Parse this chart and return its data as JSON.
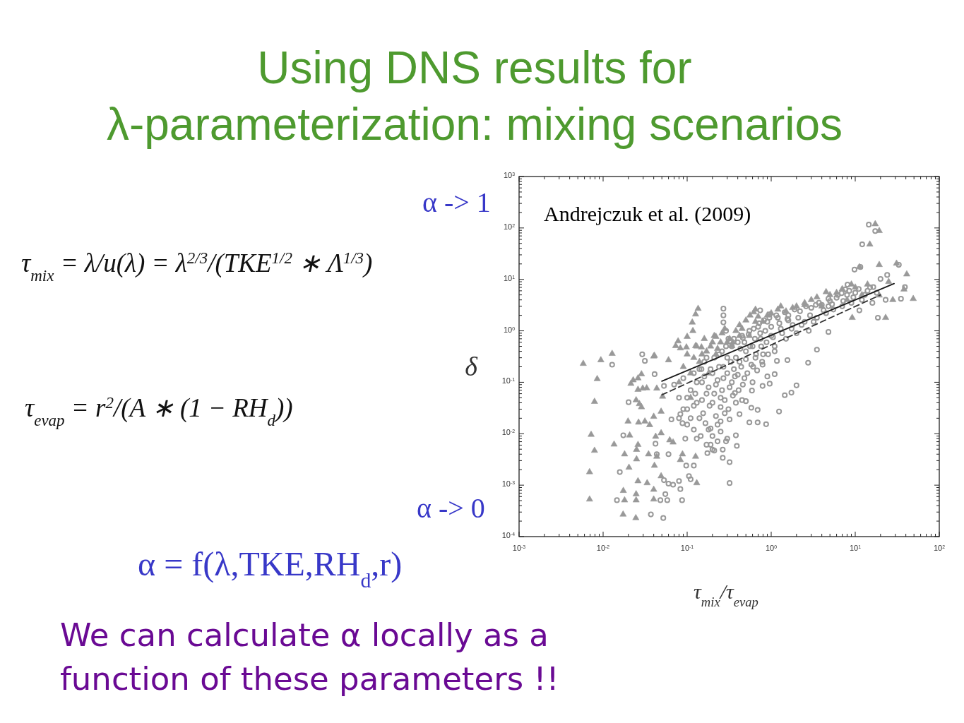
{
  "chart_data": {
    "type": "scatter",
    "title": "Using DNS results for λ-parameterization: mixing scenarios",
    "xlabel": "τ$_{mix}$/τ$_{evap}$",
    "ylabel": "δ",
    "log": "xy",
    "annotations": [
      "τ$_{mix}$ = λ/u(λ) = λ$^{2/3}$/(TKE$^{1/2}$ ∗ Λ$^{1/3}$)",
      "τ$_{evap}$ = r$^{2}$/(A ∗ (1 − RH$_{d}$))",
      "α -> 1",
      "α -> 0",
      "α = f(λ,TKE,RH$_{d}$,r)",
      "We can calculate α locally as a function of these parameters !!",
      "Andrejczuk et al. (2009)"
    ],
    "xlim": [
      0.001,
      100
    ],
    "ylim": [
      0.0001,
      1000
    ],
    "xticks": [
      {
        "value": 0.001,
        "label": "10$^{-3}$"
      },
      {
        "value": 0.002,
        "label": null
      },
      {
        "value": 0.003,
        "label": null
      },
      {
        "value": 0.004,
        "label": null
      },
      {
        "value": 0.005,
        "label": null
      },
      {
        "value": 0.006,
        "label": null
      },
      {
        "value": 0.007,
        "label": null
      },
      {
        "value": 0.008,
        "label": null
      },
      {
        "value": 0.009,
        "label": null
      },
      {
        "value": 0.01,
        "label": "10$^{-2}$"
      },
      {
        "value": 0.02,
        "label": null
      },
      {
        "value": 0.03,
        "label": null
      },
      {
        "value": 0.04,
        "label": null
      },
      {
        "value": 0.05,
        "label": null
      },
      {
        "value": 0.06,
        "label": null
      },
      {
        "value": 0.07,
        "label": null
      },
      {
        "value": 0.08,
        "label": null
      },
      {
        "value": 0.09,
        "label": null
      },
      {
        "value": 0.1,
        "label": "10$^{-1}$"
      },
      {
        "value": 0.2,
        "label": null
      },
      {
        "value": 0.3,
        "label": null
      },
      {
        "value": 0.4,
        "label": null
      },
      {
        "value": 0.5,
        "label": null
      },
      {
        "value": 0.6,
        "label": null
      },
      {
        "value": 0.7,
        "label": null
      },
      {
        "value": 0.8,
        "label": null
      },
      {
        "value": 0.9,
        "label": null
      },
      {
        "value": 1,
        "label": "10$^{0}$"
      },
      {
        "value": 2,
        "label": null
      },
      {
        "value": 3,
        "label": null
      },
      {
        "value": 4,
        "label": null
      },
      {
        "value": 5,
        "label": null
      },
      {
        "value": 6,
        "label": null
      },
      {
        "value": 7,
        "label": null
      },
      {
        "value": 8,
        "label": null
      },
      {
        "value": 9,
        "label": null
      },
      {
        "value": 10,
        "label": "10$^{1}$"
      },
      {
        "value": 20,
        "label": null
      },
      {
        "value": 30,
        "label": null
      },
      {
        "value": 40,
        "label": null
      },
      {
        "value": 50,
        "label": null
      },
      {
        "value": 60,
        "label": null
      },
      {
        "value": 70,
        "label": null
      },
      {
        "value": 80,
        "label": null
      },
      {
        "value": 90,
        "label": null
      },
      {
        "value": 100,
        "label": "10$^{2}$"
      }
    ],
    "yticks": [
      {
        "value": 0.0001,
        "label": "10$^{-4}$"
      },
      {
        "value": 0.0002,
        "label": null
      },
      {
        "value": 0.0003,
        "label": null
      },
      {
        "value": 0.0004,
        "label": null
      },
      {
        "value": 0.0005,
        "label": null
      },
      {
        "value": 0.0006,
        "label": null
      },
      {
        "value": 0.0007,
        "label": null
      },
      {
        "value": 0.0008,
        "label": null
      },
      {
        "value": 0.0009,
        "label": null
      },
      {
        "value": 0.001,
        "label": "10$^{-3}$"
      },
      {
        "value": 0.002,
        "label": null
      },
      {
        "value": 0.003,
        "label": null
      },
      {
        "value": 0.004,
        "label": null
      },
      {
        "value": 0.005,
        "label": null
      },
      {
        "value": 0.006,
        "label": null
      },
      {
        "value": 0.007,
        "label": null
      },
      {
        "value": 0.008,
        "label": null
      },
      {
        "value": 0.009,
        "label": null
      },
      {
        "value": 0.01,
        "label": "10$^{-2}$"
      },
      {
        "value": 0.02,
        "label": null
      },
      {
        "value": 0.03,
        "label": null
      },
      {
        "value": 0.04,
        "label": null
      },
      {
        "value": 0.05,
        "label": null
      },
      {
        "value": 0.06,
        "label": null
      },
      {
        "value": 0.07,
        "label": null
      },
      {
        "value": 0.08,
        "label": null
      },
      {
        "value": 0.09,
        "label": null
      },
      {
        "value": 0.1,
        "label": "10$^{-1}$"
      },
      {
        "value": 0.2,
        "label": null
      },
      {
        "value": 0.3,
        "label": null
      },
      {
        "value": 0.4,
        "label": null
      },
      {
        "value": 0.5,
        "label": null
      },
      {
        "value": 0.6,
        "label": null
      },
      {
        "value": 0.7,
        "label": null
      },
      {
        "value": 0.8,
        "label": null
      },
      {
        "value": 0.9,
        "label": null
      },
      {
        "value": 1,
        "label": "10$^{0}$"
      },
      {
        "value": 2,
        "label": null
      },
      {
        "value": 3,
        "label": null
      },
      {
        "value": 4,
        "label": null
      },
      {
        "value": 5,
        "label": null
      },
      {
        "value": 6,
        "label": null
      },
      {
        "value": 7,
        "label": null
      },
      {
        "value": 8,
        "label": null
      },
      {
        "value": 9,
        "label": null
      },
      {
        "value": 10,
        "label": "10$^{1}$"
      },
      {
        "value": 20,
        "label": null
      },
      {
        "value": 30,
        "label": null
      },
      {
        "value": 40,
        "label": null
      },
      {
        "value": 50,
        "label": null
      },
      {
        "value": 60,
        "label": null
      },
      {
        "value": 70,
        "label": null
      },
      {
        "value": 80,
        "label": null
      },
      {
        "value": 90,
        "label": null
      },
      {
        "value": 100,
        "label": "10$^{2}$"
      },
      {
        "value": 200,
        "label": null
      },
      {
        "value": 300,
        "label": null
      },
      {
        "value": 400,
        "label": null
      },
      {
        "value": 500,
        "label": null
      },
      {
        "value": 600,
        "label": null
      },
      {
        "value": 700,
        "label": null
      },
      {
        "value": 800,
        "label": null
      },
      {
        "value": 900,
        "label": null
      },
      {
        "value": 1000,
        "label": "10$^{3}$"
      }
    ],
    "series": [
      {
        "type": "scatter",
        "marker": "triangle",
        "color": "#999999",
        "x": [
          0.0058,
          0.0094,
          0.0128,
          0.0085,
          0.0079,
          0.0072,
          0.0079,
          0.0069,
          0.0069,
          0.0135,
          0.0173,
          0.0245,
          0.0174,
          0.018,
          0.0247,
          0.0247,
          0.018,
          0.0203,
          0.0198,
          0.0207,
          0.0214,
          0.0228,
          0.026,
          0.026,
          0.0296,
          0.033,
          0.0286,
          0.0247,
          0.027,
          0.0286,
          0.0264,
          0.0314,
          0.0358,
          0.026,
          0.025,
          0.025,
          0.0347,
          0.026,
          0.0334,
          0.04,
          0.04,
          0.0408,
          0.0435,
          0.0422,
          0.04,
          0.0435,
          0.051,
          0.06,
          0.049,
          0.049,
          0.0408,
          0.049,
          0.062,
          0.083,
          0.088,
          0.126,
          0.13,
          0.068,
          0.135,
          0.126,
          0.115,
          0.117,
          0.078,
          0.073,
          0.083,
          0.1,
          0.098,
          0.126,
          0.148,
          0.04,
          17.3,
          19.3,
          14.9,
          19.3,
          31,
          41,
          49,
          38,
          23,
          28,
          11.2,
          19.3,
          9.2,
          4.5,
          2.5,
          0.65,
          0.22,
          0.34,
          0.3,
          0.42,
          0.55,
          0.65,
          0.35,
          0.25,
          0.2,
          0.15,
          0.45,
          0.7,
          0.9,
          1.2,
          1.5,
          2,
          3,
          4,
          6,
          8,
          10,
          12,
          0.12,
          0.11,
          0.18,
          0.22,
          0.08,
          0.09,
          0.1,
          0.11,
          0.13,
          0.14,
          0.16,
          0.17,
          0.19,
          0.21,
          0.23,
          0.26,
          0.28,
          0.32,
          0.38,
          0.42,
          0.5,
          0.56,
          0.62,
          0.8,
          1,
          1.3,
          1.8,
          2.5,
          3.5,
          5,
          7,
          9,
          14,
          25
        ],
        "values": [
          0.23,
          0.27,
          0.36,
          0.116,
          0.042,
          0.0096,
          0.0047,
          0.0018,
          0.00053,
          0.0062,
          0.00027,
          0.00023,
          0.00078,
          0.00051,
          0.00067,
          0.00051,
          0.004,
          0.0022,
          0.0174,
          0.0093,
          0.094,
          0.11,
          0.12,
          0.072,
          0.076,
          0.077,
          0.144,
          0.045,
          0.038,
          0.033,
          0.0166,
          0.0174,
          0.0148,
          0.0061,
          0.0049,
          0.0032,
          0.004,
          0.0012,
          0.0011,
          0.00082,
          0.00053,
          0.0024,
          0.0036,
          0.0088,
          0.0215,
          0.076,
          0.053,
          0.27,
          0.0015,
          0.0103,
          0.33,
          0.027,
          0.0075,
          0.0031,
          0.004,
          0.0036,
          0.0011,
          0.0068,
          2.7,
          2.1,
          1.46,
          1,
          0.63,
          0.51,
          0.46,
          0.77,
          0.48,
          0.51,
          0.48,
          0.32,
          119,
          88,
          48,
          19.2,
          20.4,
          12.6,
          4.2,
          6.4,
          1.8,
          4,
          17.4,
          4.9,
          1.8,
          5.7,
          3.2,
          2.6,
          0.77,
          0.51,
          0.6,
          0.8,
          0.8,
          1.5,
          0.6,
          0.6,
          0.6,
          0.35,
          1.1,
          1.9,
          2,
          2.6,
          2.4,
          3,
          4,
          3,
          5.5,
          4,
          7,
          5,
          0.3,
          0.05,
          0.15,
          0.35,
          0.1,
          0.2,
          0.35,
          0.15,
          0.5,
          0.25,
          0.7,
          0.4,
          0.5,
          0.8,
          0.45,
          0.9,
          1.1,
          0.7,
          1,
          1.3,
          1.6,
          2,
          2.3,
          1.5,
          2.2,
          3,
          2.8,
          3.5,
          4.5,
          5,
          6.5,
          8,
          8,
          9
        ]
      },
      {
        "type": "scatter",
        "marker": "circle",
        "color": "#999999",
        "x": [
          0.0128,
          0.0292,
          0.0314,
          0.0201,
          0.0174,
          0.0158,
          0.0146,
          0.037,
          0.052,
          0.048,
          0.055,
          0.058,
          0.087,
          0.083,
          0.08,
          0.053,
          0.06,
          0.068,
          0.0435,
          0.042,
          0.06,
          0.0975,
          0.105,
          0.11,
          0.12,
          0.053,
          0.041,
          0.148,
          0.17,
          0.2,
          0.088,
          0.065,
          0.083,
          2.75,
          2,
          1.74,
          1.45,
          1.24,
          0.87,
          0.69,
          0.55,
          0.69,
          0.58,
          0.5,
          0.39,
          0.38,
          0.32,
          0.265,
          0.32,
          0.265,
          0.21,
          0.174,
          0.29,
          0.23,
          0.19,
          0.19,
          1.56,
          1.17,
          1.1,
          0.96,
          0.79,
          0.59,
          0.45,
          0.37,
          0.42,
          0.32,
          0.25,
          0.25,
          0.37,
          0.61,
          0.79,
          0.9,
          14.5,
          17.3,
          12.1,
          9.8,
          11.5,
          20,
          24,
          33,
          39,
          35,
          23,
          16.4,
          18.6,
          6.9,
          4.8,
          3.5,
          8.1,
          0.27,
          0.27,
          0.27,
          0.29,
          0.31,
          0.46,
          0.96,
          0.74,
          3.4,
          1.56,
          4.8,
          7.6,
          11.2,
          0.07,
          0.08,
          0.09,
          0.1,
          0.11,
          0.12,
          0.13,
          0.14,
          0.15,
          0.16,
          0.17,
          0.18,
          0.19,
          0.2,
          0.21,
          0.22,
          0.23,
          0.24,
          0.25,
          0.26,
          0.27,
          0.28,
          0.3,
          0.32,
          0.34,
          0.36,
          0.38,
          0.4,
          0.42,
          0.45,
          0.48,
          0.5,
          0.55,
          0.6,
          0.65,
          0.7,
          0.75,
          0.8,
          0.9,
          1,
          1.1,
          1.2,
          1.3,
          1.5,
          1.6,
          1.8,
          2,
          2.2,
          2.5,
          2.8,
          3,
          3.5,
          4,
          4.5,
          5,
          5.5,
          6,
          7,
          8,
          9,
          10,
          12,
          14,
          16,
          0.13,
          0.1,
          0.08,
          0.095,
          0.11,
          0.12,
          0.125,
          0.13,
          0.14,
          0.15,
          0.155,
          0.16,
          0.17,
          0.18,
          0.185,
          0.2,
          0.21,
          0.22,
          0.23,
          0.24,
          0.26,
          0.27,
          0.28,
          0.29,
          0.3,
          0.31,
          0.33,
          0.34,
          0.35,
          0.36,
          0.38,
          0.4,
          0.41,
          0.43,
          0.44,
          0.46,
          0.48,
          0.5,
          0.52,
          0.54,
          0.56,
          0.58,
          0.6,
          0.62,
          0.64,
          0.66,
          0.68,
          0.72,
          0.74,
          0.76,
          0.78,
          0.82,
          0.85,
          0.88,
          0.92,
          0.95,
          1,
          1.05,
          1.1,
          1.15,
          1.25,
          1.35,
          1.45,
          1.6,
          1.75,
          1.9,
          2.1,
          2.3,
          2.6,
          2.9,
          3.2,
          3.7,
          4.2,
          4.8,
          5.3,
          6.2,
          7.2,
          8.5,
          9.5,
          11,
          13,
          15,
          18,
          0.09,
          0.1,
          0.12,
          0.145,
          0.165,
          0.2,
          0.25,
          0.3
        ],
        "values": [
          0.22,
          0.35,
          0.26,
          0.041,
          0.0093,
          0.0018,
          0.00051,
          0.00027,
          0.00023,
          0.00051,
          0.00067,
          0.00051,
          0.00051,
          0.00084,
          0.0012,
          0.00125,
          0.00107,
          0.00102,
          0.004,
          0.0064,
          0.004,
          0.0024,
          0.0015,
          0.0013,
          0.0024,
          0.085,
          0.144,
          0.18,
          0.0061,
          0.0049,
          0.016,
          0.019,
          0.024,
          0.24,
          0.087,
          0.063,
          0.056,
          0.027,
          0.0153,
          0.0166,
          0.0166,
          0.029,
          0.032,
          0.043,
          0.0058,
          0.0093,
          0.0028,
          0.0034,
          0.0011,
          0.0049,
          0.0047,
          0.0042,
          0.0071,
          0.0071,
          0.0061,
          0.0127,
          0.27,
          0.26,
          0.144,
          0.094,
          0.085,
          0.069,
          0.045,
          0.062,
          0.024,
          0.019,
          0.0174,
          0.033,
          0.13,
          0.2,
          0.22,
          0.13,
          116,
          87,
          48,
          15.5,
          17.4,
          10.2,
          12.2,
          19.2,
          7.1,
          4.2,
          4,
          7.1,
          1.8,
          5.4,
          0.95,
          0.43,
          7.9,
          2.7,
          2,
          1.46,
          1,
          0.7,
          0.73,
          2.1,
          2.5,
          3.2,
          1.7,
          3,
          6.4,
          2.5,
          0.09,
          0.05,
          0.12,
          0.03,
          0.07,
          0.15,
          0.04,
          0.02,
          0.1,
          0.25,
          0.06,
          0.012,
          0.18,
          0.04,
          0.3,
          0.09,
          0.015,
          0.2,
          0.05,
          0.4,
          0.12,
          0.025,
          0.3,
          0.08,
          0.5,
          0.18,
          0.04,
          0.6,
          0.25,
          0.8,
          0.12,
          0.4,
          1,
          0.5,
          0.3,
          1.2,
          0.7,
          0.35,
          1.5,
          0.8,
          0.5,
          1.8,
          1.1,
          0.7,
          2,
          1.3,
          0.9,
          2.4,
          1.5,
          1,
          2.8,
          1.8,
          3.2,
          2.2,
          3.8,
          2.6,
          4.4,
          3,
          5,
          3.5,
          5.5,
          4,
          6,
          3.5,
          0.008,
          0.015,
          0.02,
          0.008,
          0.02,
          0.035,
          0.06,
          0.1,
          0.18,
          0.045,
          0.025,
          0.13,
          0.3,
          0.08,
          0.035,
          0.15,
          0.06,
          0.022,
          0.11,
          0.35,
          0.07,
          0.2,
          0.045,
          0.5,
          0.15,
          0.03,
          0.25,
          0.1,
          0.055,
          0.7,
          0.3,
          0.14,
          0.07,
          0.45,
          0.2,
          0.09,
          0.6,
          0.28,
          0.15,
          0.85,
          0.5,
          0.22,
          0.1,
          1.1,
          0.7,
          0.35,
          0.17,
          1.4,
          0.9,
          0.5,
          0.25,
          1.6,
          1,
          0.6,
          0.35,
          1.8,
          1.2,
          0.75,
          0.4,
          2,
          1.4,
          0.9,
          2.3,
          1.6,
          1.1,
          2.6,
          1.8,
          1.3,
          3,
          2,
          1.5,
          3.5,
          2.5,
          4.2,
          3.3,
          5,
          3.8,
          6,
          4.5,
          6.5,
          5,
          7,
          5.5,
          0.03,
          0.05,
          0.012,
          0.009,
          0.016,
          0.009,
          0.011,
          0.008
        ]
      },
      {
        "type": "line",
        "marker": "none",
        "line_style": "solid",
        "color": "#1a1a1a",
        "x": [
          0.05,
          29
        ],
        "values": [
          0.105,
          8.3
        ]
      },
      {
        "type": "line",
        "marker": "none",
        "line_style": "dashed",
        "color": "#333333",
        "x": [
          0.05,
          20
        ],
        "values": [
          0.057,
          5
        ]
      }
    ]
  }
}
